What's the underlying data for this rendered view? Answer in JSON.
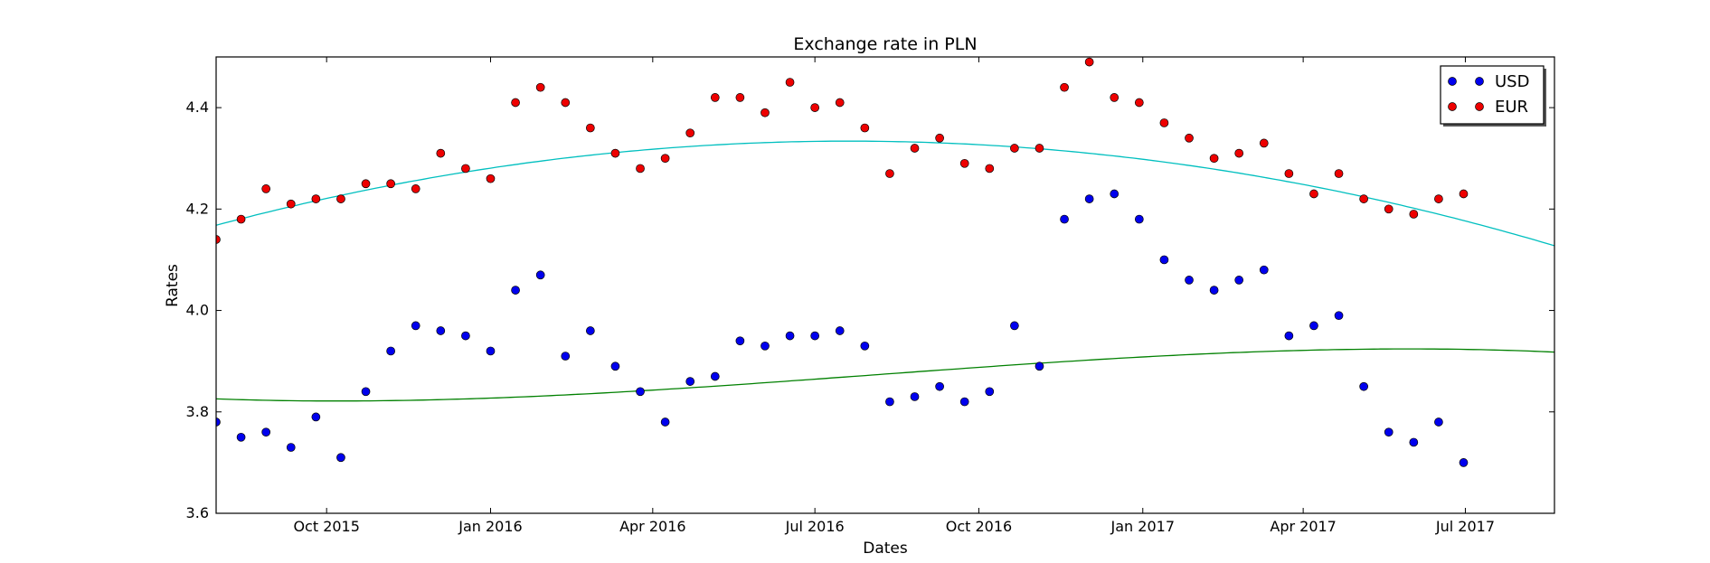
{
  "chart_data": {
    "type": "scatter",
    "title": "Exchange rate in PLN",
    "xlabel": "Dates",
    "ylabel": "Rates",
    "xlim": [
      "2015-07-31",
      "2017-08-20"
    ],
    "ylim": [
      3.6,
      4.5
    ],
    "x_ticks": [
      {
        "date": "2015-10-01",
        "label": "Oct 2015"
      },
      {
        "date": "2016-01-01",
        "label": "Jan 2016"
      },
      {
        "date": "2016-04-01",
        "label": "Apr 2016"
      },
      {
        "date": "2016-07-01",
        "label": "Jul 2016"
      },
      {
        "date": "2016-10-01",
        "label": "Oct 2016"
      },
      {
        "date": "2017-01-01",
        "label": "Jan 2017"
      },
      {
        "date": "2017-04-01",
        "label": "Apr 2017"
      },
      {
        "date": "2017-07-01",
        "label": "Jul 2017"
      }
    ],
    "y_ticks": [
      3.6,
      3.8,
      4.0,
      4.2,
      4.4
    ],
    "grid": false,
    "legend_position": "top-right",
    "x": [
      "2015-07-31",
      "2015-08-14",
      "2015-08-28",
      "2015-09-11",
      "2015-09-25",
      "2015-10-09",
      "2015-10-23",
      "2015-11-06",
      "2015-11-20",
      "2015-12-04",
      "2015-12-18",
      "2016-01-01",
      "2016-01-15",
      "2016-01-29",
      "2016-02-12",
      "2016-02-26",
      "2016-03-11",
      "2016-03-25",
      "2016-04-08",
      "2016-04-22",
      "2016-05-06",
      "2016-05-20",
      "2016-06-03",
      "2016-06-17",
      "2016-07-01",
      "2016-07-15",
      "2016-07-29",
      "2016-08-12",
      "2016-08-26",
      "2016-09-09",
      "2016-09-23",
      "2016-10-07",
      "2016-10-21",
      "2016-11-04",
      "2016-11-18",
      "2016-12-02",
      "2016-12-16",
      "2016-12-30",
      "2017-01-13",
      "2017-01-27",
      "2017-02-10",
      "2017-02-24",
      "2017-03-10",
      "2017-03-24",
      "2017-04-07",
      "2017-04-21",
      "2017-05-05",
      "2017-05-19",
      "2017-06-02",
      "2017-06-16",
      "2017-06-30"
    ],
    "series": [
      {
        "name": "USD",
        "color": "#0000ee",
        "values": [
          3.78,
          3.75,
          3.76,
          3.73,
          3.79,
          3.71,
          3.84,
          3.92,
          3.97,
          3.96,
          3.95,
          3.92,
          4.04,
          4.07,
          3.91,
          3.96,
          3.89,
          3.84,
          3.78,
          3.86,
          3.87,
          3.94,
          3.93,
          3.95,
          3.95,
          3.96,
          3.93,
          3.82,
          3.83,
          3.85,
          3.82,
          3.84,
          3.97,
          3.89,
          4.18,
          4.22,
          4.23,
          4.18,
          4.1,
          4.06,
          4.04,
          4.06,
          4.08,
          3.95,
          3.97,
          3.99,
          3.85,
          3.76,
          3.74,
          3.78,
          3.7
        ],
        "trend_color": "#008000",
        "trend_poly": [
          3.8257,
          -0.000129,
          1.045e-06,
          -9.45e-10
        ]
      },
      {
        "name": "EUR",
        "color": "#ee0000",
        "values": [
          4.14,
          4.18,
          4.24,
          4.21,
          4.22,
          4.22,
          4.25,
          4.25,
          4.24,
          4.31,
          4.28,
          4.26,
          4.41,
          4.44,
          4.41,
          4.36,
          4.31,
          4.28,
          4.3,
          4.35,
          4.42,
          4.42,
          4.39,
          4.45,
          4.4,
          4.41,
          4.36,
          4.27,
          4.32,
          4.34,
          4.29,
          4.28,
          4.32,
          4.32,
          4.44,
          4.49,
          4.42,
          4.41,
          4.37,
          4.34,
          4.3,
          4.31,
          4.33,
          4.27,
          4.23,
          4.27,
          4.22,
          4.2,
          4.19,
          4.22,
          4.23
        ],
        "trend_color": "#00bfbf",
        "trend_poly": [
          4.168,
          0.0009346,
          -1.316e-06
        ]
      }
    ]
  }
}
